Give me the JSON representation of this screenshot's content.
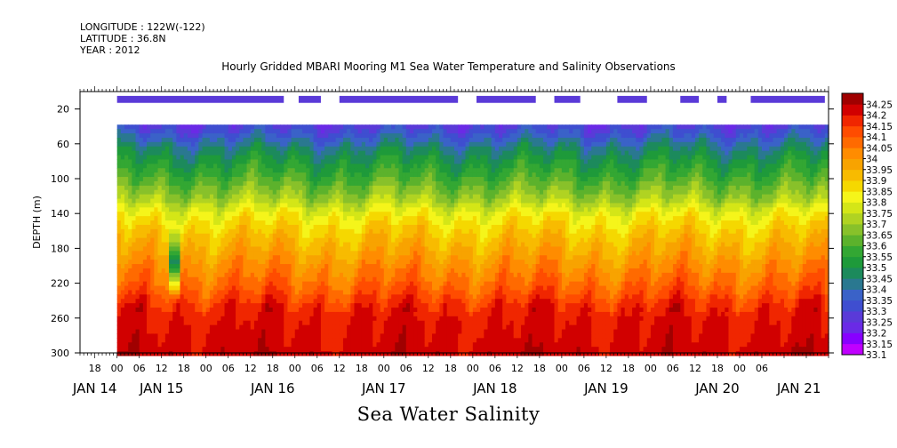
{
  "header": {
    "longitude": "LONGITUDE : 122W(-122)",
    "latitude": "LATITUDE : 36.8N",
    "year": "YEAR : 2012"
  },
  "chart_data": {
    "type": "heatmap",
    "title": "Hourly Gridded MBARI Mooring M1 Sea Water Temperature and Salinity Observations",
    "caption": "Sea Water Salinity",
    "ylabel": "DEPTH (m)",
    "ylim": [
      0,
      300
    ],
    "y_inverted": true,
    "y_ticks": [
      20,
      60,
      100,
      140,
      180,
      220,
      260,
      300
    ],
    "xlim_hours": [
      -10,
      192
    ],
    "x_hour_ticks": [
      {
        "h": -6,
        "label": "18"
      },
      {
        "h": 0,
        "label": "00"
      },
      {
        "h": 6,
        "label": "06"
      },
      {
        "h": 12,
        "label": "12"
      },
      {
        "h": 18,
        "label": "18"
      },
      {
        "h": 24,
        "label": "00"
      },
      {
        "h": 30,
        "label": "06"
      },
      {
        "h": 36,
        "label": "12"
      },
      {
        "h": 42,
        "label": "18"
      },
      {
        "h": 48,
        "label": "00"
      },
      {
        "h": 54,
        "label": "06"
      },
      {
        "h": 60,
        "label": "12"
      },
      {
        "h": 66,
        "label": "18"
      },
      {
        "h": 72,
        "label": "00"
      },
      {
        "h": 78,
        "label": "06"
      },
      {
        "h": 84,
        "label": "12"
      },
      {
        "h": 90,
        "label": "18"
      },
      {
        "h": 96,
        "label": "00"
      },
      {
        "h": 102,
        "label": "06"
      },
      {
        "h": 108,
        "label": "12"
      },
      {
        "h": 114,
        "label": "18"
      },
      {
        "h": 120,
        "label": "00"
      },
      {
        "h": 126,
        "label": "06"
      },
      {
        "h": 132,
        "label": "12"
      },
      {
        "h": 138,
        "label": "18"
      },
      {
        "h": 144,
        "label": "00"
      },
      {
        "h": 150,
        "label": "06"
      },
      {
        "h": 156,
        "label": "12"
      },
      {
        "h": 162,
        "label": "18"
      },
      {
        "h": 168,
        "label": "00"
      },
      {
        "h": 174,
        "label": "06"
      }
    ],
    "x_date_labels": [
      {
        "h": -6,
        "label": "JAN 14"
      },
      {
        "h": 12,
        "label": "JAN 15"
      },
      {
        "h": 42,
        "label": "JAN 16"
      },
      {
        "h": 72,
        "label": "JAN 17"
      },
      {
        "h": 102,
        "label": "JAN 18"
      },
      {
        "h": 132,
        "label": "JAN 19"
      },
      {
        "h": 162,
        "label": "JAN 20"
      },
      {
        "h": 184,
        "label": "JAN 21"
      }
    ],
    "data_start_hour": 0,
    "data_end_hour": 192,
    "surface_segments_hours": [
      [
        0,
        45
      ],
      [
        49,
        55
      ],
      [
        60,
        92
      ],
      [
        97,
        113
      ],
      [
        118,
        125
      ],
      [
        135,
        143
      ],
      [
        152,
        157
      ],
      [
        162,
        164.5
      ],
      [
        171,
        191
      ]
    ],
    "surface_depth_range": [
      5,
      13
    ],
    "profile_top_depth": 38,
    "levels": [
      33.1,
      33.15,
      33.2,
      33.25,
      33.3,
      33.35,
      33.4,
      33.45,
      33.5,
      33.55,
      33.6,
      33.65,
      33.7,
      33.75,
      33.8,
      33.85,
      33.9,
      33.95,
      34,
      34.05,
      34.1,
      34.15,
      34.2,
      34.25
    ],
    "level_labels": [
      "33.1",
      "33.15",
      "33.2",
      "33.25",
      "33.3",
      "33.35",
      "33.4",
      "33.45",
      "33.5",
      "33.55",
      "33.6",
      "33.65",
      "33.7",
      "33.75",
      "33.8",
      "33.85",
      "33.9",
      "33.95",
      "34",
      "34.05",
      "34.1",
      "34.15",
      "34.2",
      "34.25"
    ],
    "colors": [
      "#c000ff",
      "#8800ff",
      "#6a2ae6",
      "#5a3ad8",
      "#3f4ed0",
      "#3a62c8",
      "#2a7890",
      "#1c8a5c",
      "#1e9a3a",
      "#33a733",
      "#5cb22c",
      "#88c12a",
      "#b0d322",
      "#d4e617",
      "#f5f51a",
      "#f5d800",
      "#f8bb00",
      "#f8a300",
      "#ff8c00",
      "#ff6a00",
      "#ff4c00",
      "#f02600",
      "#d10000",
      "#a00000"
    ],
    "profile_depths": [
      38,
      50,
      65,
      80,
      95,
      110,
      125,
      140,
      155,
      170,
      185,
      200,
      215,
      230,
      245,
      260,
      275,
      290,
      300
    ],
    "profile_values": [
      33.28,
      33.35,
      33.45,
      33.52,
      33.58,
      33.65,
      33.72,
      33.82,
      33.88,
      33.93,
      33.97,
      34.02,
      34.06,
      34.11,
      34.17,
      34.2,
      34.21,
      34.22,
      34.23
    ],
    "anomalies": [
      {
        "hour": 15.5,
        "depth_range": [
          150,
          240
        ],
        "min_value": 33.45
      },
      {
        "hour": 18.5,
        "depth_range": [
          65,
          95
        ],
        "min_value": 33.7
      }
    ]
  }
}
